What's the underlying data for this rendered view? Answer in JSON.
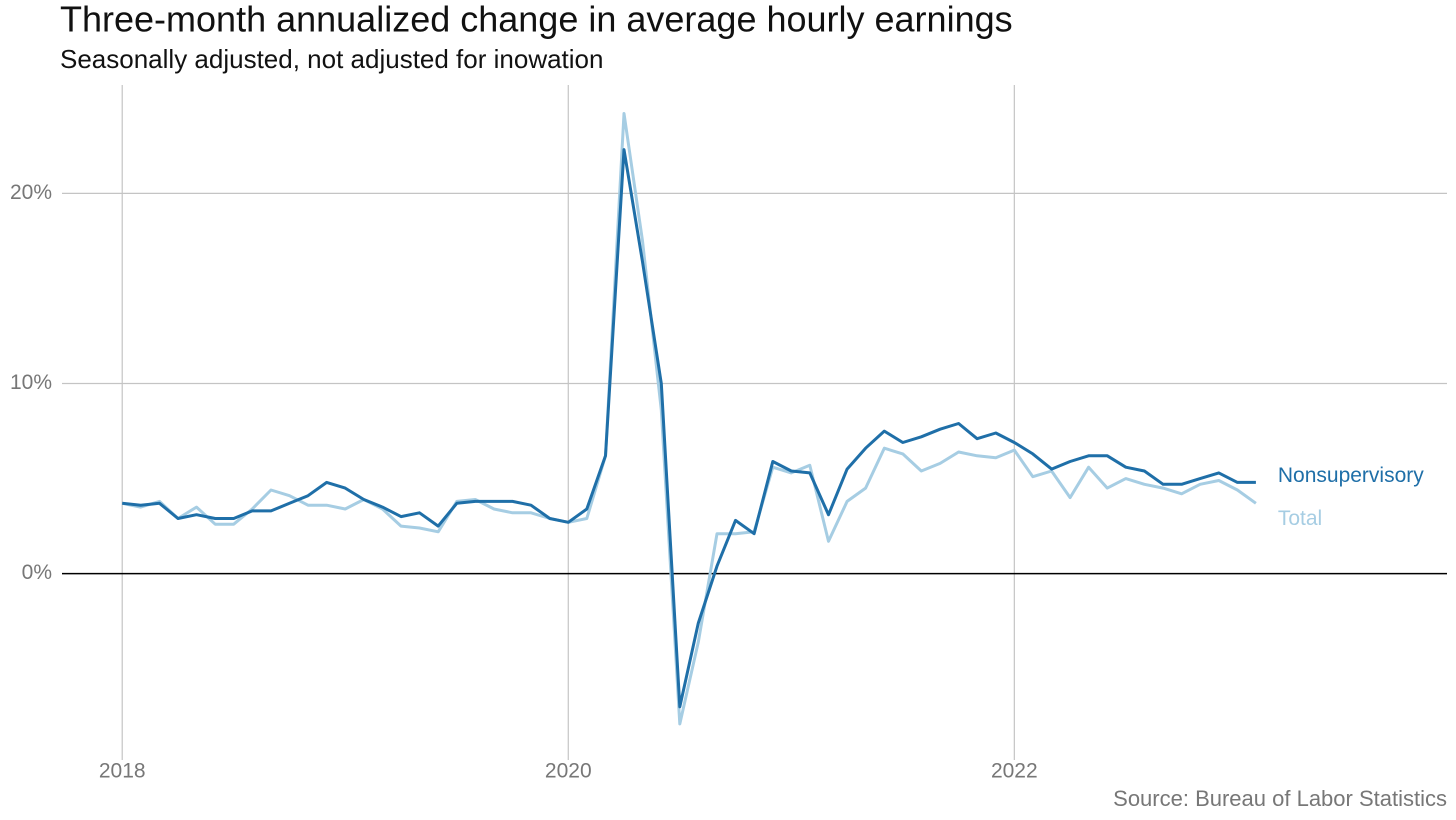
{
  "chart_data": {
    "type": "line",
    "title": "Three-month annualized change in average hourly earnings",
    "subtitle": "Seasonally adjusted, not adjusted for inowation",
    "source": "Source: Bureau of Labor Statistics",
    "x": [
      2018,
      2018.083,
      2018.167,
      2018.25,
      2018.333,
      2018.417,
      2018.5,
      2018.583,
      2018.667,
      2018.75,
      2018.833,
      2018.917,
      2019,
      2019.083,
      2019.167,
      2019.25,
      2019.333,
      2019.417,
      2019.5,
      2019.583,
      2019.667,
      2019.75,
      2019.833,
      2019.917,
      2020,
      2020.083,
      2020.167,
      2020.25,
      2020.333,
      2020.417,
      2020.5,
      2020.583,
      2020.667,
      2020.75,
      2020.833,
      2020.917,
      2021,
      2021.083,
      2021.167,
      2021.25,
      2021.333,
      2021.417,
      2021.5,
      2021.583,
      2021.667,
      2021.75,
      2021.833,
      2021.917,
      2022,
      2022.083,
      2022.167,
      2022.25,
      2022.333,
      2022.417,
      2022.5,
      2022.583,
      2022.667,
      2022.75,
      2022.833,
      2022.917,
      2023,
      2023.083
    ],
    "series": [
      {
        "name": "Nonsupervisory",
        "color": "#1f6fa8",
        "values": [
          3.7,
          3.6,
          3.7,
          2.9,
          3.1,
          2.9,
          2.9,
          3.3,
          3.3,
          3.7,
          4.1,
          4.8,
          4.5,
          3.9,
          3.5,
          3.0,
          3.2,
          2.5,
          3.7,
          3.8,
          3.8,
          3.8,
          3.6,
          2.9,
          2.7,
          3.4,
          6.2,
          22.3,
          16.4,
          10.0,
          -7.0,
          -2.6,
          0.4,
          2.8,
          2.1,
          5.9,
          5.4,
          5.3,
          3.1,
          5.5,
          6.6,
          7.5,
          6.9,
          7.2,
          7.6,
          7.9,
          7.1,
          7.4,
          6.9,
          6.3,
          5.5,
          5.9,
          6.2,
          6.2,
          5.6,
          5.4,
          4.7,
          4.7,
          5.0,
          5.3,
          4.8,
          4.8
        ]
      },
      {
        "name": "Total",
        "color": "#a6cde3",
        "values": [
          3.7,
          3.5,
          3.8,
          2.9,
          3.5,
          2.6,
          2.6,
          3.4,
          4.4,
          4.1,
          3.6,
          3.6,
          3.4,
          3.9,
          3.4,
          2.5,
          2.4,
          2.2,
          3.8,
          3.9,
          3.4,
          3.2,
          3.2,
          2.9,
          2.7,
          2.9,
          6.2,
          24.2,
          17.5,
          8.6,
          -7.9,
          -3.6,
          2.1,
          2.1,
          2.2,
          5.6,
          5.3,
          5.7,
          1.7,
          3.8,
          4.5,
          6.6,
          6.3,
          5.4,
          5.8,
          6.4,
          6.2,
          6.1,
          6.5,
          5.1,
          5.4,
          4.0,
          5.6,
          4.5,
          5.0,
          4.7,
          4.5,
          4.2,
          4.7,
          4.9,
          4.4,
          3.7
        ]
      }
    ],
    "xlim": [
      2017.73,
      2023.94
    ],
    "xticks": [
      2018,
      2020,
      2022
    ],
    "ylim": [
      -9.8,
      25.7
    ],
    "yticks": [
      {
        "value": 0,
        "label": "0%"
      },
      {
        "value": 10,
        "label": "10%"
      },
      {
        "value": 20,
        "label": "20%"
      }
    ],
    "grid": true
  }
}
